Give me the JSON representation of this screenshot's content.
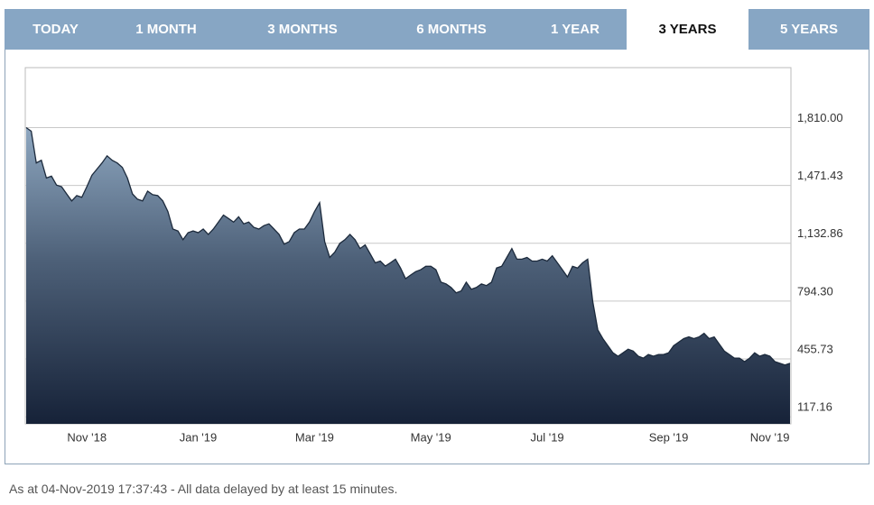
{
  "tabs": {
    "labels": [
      "TODAY",
      "1 MONTH",
      "3 MONTHS",
      "6 MONTHS",
      "1 YEAR",
      "3 YEARS",
      "5 YEARS"
    ],
    "active": 5
  },
  "chart_data": {
    "type": "area",
    "categories": [
      null,
      null,
      null,
      null,
      null,
      null,
      null,
      null,
      null,
      null,
      null,
      null,
      "Nov '18",
      null,
      null,
      null,
      null,
      null,
      null,
      null,
      null,
      null,
      null,
      null,
      null,
      null,
      null,
      null,
      null,
      null,
      null,
      null,
      null,
      null,
      "Jan '19",
      null,
      null,
      null,
      null,
      null,
      null,
      null,
      null,
      null,
      null,
      null,
      null,
      null,
      null,
      null,
      null,
      null,
      null,
      null,
      null,
      null,
      null,
      "Mar '19",
      null,
      null,
      null,
      null,
      null,
      null,
      null,
      null,
      null,
      null,
      null,
      null,
      null,
      null,
      null,
      null,
      null,
      null,
      null,
      null,
      null,
      null,
      "May '19",
      null,
      null,
      null,
      null,
      null,
      null,
      null,
      null,
      null,
      null,
      null,
      null,
      null,
      null,
      null,
      null,
      null,
      null,
      null,
      null,
      null,
      null,
      "Jul '19",
      null,
      null,
      null,
      null,
      null,
      null,
      null,
      null,
      null,
      null,
      null,
      null,
      null,
      null,
      null,
      null,
      null,
      null,
      null,
      null,
      null,
      null,
      null,
      "Sep '19",
      null,
      null,
      null,
      null,
      null,
      null,
      null,
      null,
      null,
      null,
      null,
      null,
      null,
      null,
      null,
      null,
      null,
      null,
      null,
      "Nov '19",
      null,
      null,
      null,
      null
    ],
    "series": [
      {
        "color": "#1c2a3c",
        "values": [
          1810,
          1789,
          1603,
          1619,
          1515,
          1526,
          1474,
          1464,
          1422,
          1381,
          1412,
          1402,
          1464,
          1531,
          1567,
          1603,
          1645,
          1619,
          1603,
          1577,
          1515,
          1422,
          1391,
          1381,
          1438,
          1417,
          1412,
          1381,
          1319,
          1216,
          1205,
          1154,
          1195,
          1205,
          1195,
          1216,
          1185,
          1216,
          1257,
          1298,
          1278,
          1257,
          1288,
          1247,
          1257,
          1226,
          1216,
          1236,
          1247,
          1216,
          1185,
          1128,
          1143,
          1195,
          1216,
          1216,
          1257,
          1319,
          1371,
          1143,
          1050,
          1081,
          1133,
          1154,
          1185,
          1154,
          1102,
          1123,
          1071,
          1019,
          1029,
          999,
          1019,
          1040,
          988,
          926,
          947,
          967,
          978,
          998,
          998,
          978,
          905,
          895,
          874,
          843,
          854,
          905,
          864,
          874,
          895,
          885,
          905,
          988,
          998,
          1050,
          1102,
          1040,
          1040,
          1050,
          1029,
          1029,
          1040,
          1029,
          1060,
          1019,
          978,
          936,
          998,
          988,
          1019,
          1040,
          792,
          626,
          575,
          533,
          492,
          472,
          492,
          513,
          502,
          472,
          461,
          482,
          472,
          482,
          482,
          492,
          533,
          554,
          575,
          585,
          575,
          585,
          606,
          575,
          585,
          543,
          502,
          482,
          461,
          461,
          440,
          461,
          492,
          472,
          482,
          472,
          440,
          430,
          420,
          430
        ]
      }
    ],
    "ylim": [
      76,
      2161
    ],
    "yticks": [
      {
        "value": 117.16,
        "label": "117.16"
      },
      {
        "value": 455.73,
        "label": "455.73"
      },
      {
        "value": 794.3,
        "label": "794.30"
      },
      {
        "value": 1132.86,
        "label": "1,132.86"
      },
      {
        "value": 1471.43,
        "label": "1,471.43"
      },
      {
        "value": 1810,
        "label": "1,810.00"
      }
    ],
    "grid": true
  },
  "footer": "As at 04-Nov-2019 17:37:43 -  All data delayed by at least 15 minutes."
}
